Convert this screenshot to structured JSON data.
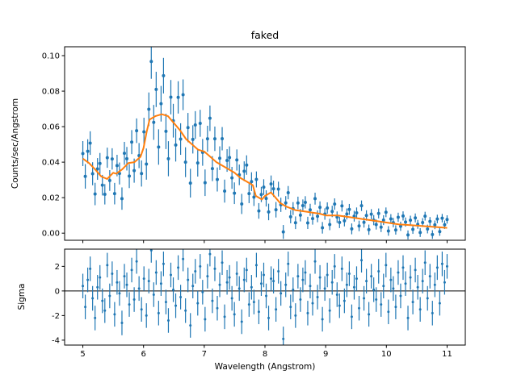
{
  "figure": {
    "background": "#ffffff",
    "data_color": "#1f77b4",
    "model_color": "#ff7f0e"
  },
  "chart_data": [
    {
      "type": "scatter",
      "name": "spectrum",
      "title": "faked",
      "ylabel": "Counts/sec/Angstrom",
      "xlim": [
        4.7,
        11.3
      ],
      "ylim": [
        -0.004,
        0.105
      ],
      "x_ticks": [
        5,
        6,
        7,
        8,
        9,
        10,
        11
      ],
      "x_tick_labels": [
        "5",
        "6",
        "7",
        "8",
        "9",
        "10",
        "11"
      ],
      "x_tick_labels_visible": false,
      "y_ticks": [
        0.0,
        0.02,
        0.04,
        0.06,
        0.08,
        0.1
      ],
      "y_tick_labels": [
        "0.00",
        "0.02",
        "0.04",
        "0.06",
        "0.08",
        "0.10"
      ],
      "grid": false,
      "legend": "none",
      "x": {
        "start": 5.0,
        "end": 11.0,
        "n": 150
      },
      "series": [
        {
          "name": "data",
          "type": "errorbar",
          "color": "#1f77b4",
          "marker": "point",
          "error_model": {
            "base": 0.002,
            "scale": 0.12
          },
          "note": "y = model(x) + sigma(x) * residual(x); residuals listed in residual panel values"
        },
        {
          "name": "model",
          "type": "line",
          "color": "#ff7f0e",
          "points": [
            [
              5.0,
              0.042
            ],
            [
              5.1,
              0.0395
            ],
            [
              5.2,
              0.036
            ],
            [
              5.3,
              0.032
            ],
            [
              5.4,
              0.0305
            ],
            [
              5.5,
              0.034
            ],
            [
              5.55,
              0.0335
            ],
            [
              5.65,
              0.036
            ],
            [
              5.75,
              0.0395
            ],
            [
              5.85,
              0.04
            ],
            [
              5.95,
              0.043
            ],
            [
              6.0,
              0.048
            ],
            [
              6.05,
              0.057
            ],
            [
              6.1,
              0.064
            ],
            [
              6.2,
              0.066
            ],
            [
              6.3,
              0.067
            ],
            [
              6.4,
              0.066
            ],
            [
              6.5,
              0.062
            ],
            [
              6.6,
              0.058
            ],
            [
              6.7,
              0.053
            ],
            [
              6.8,
              0.05
            ],
            [
              6.9,
              0.047
            ],
            [
              7.0,
              0.046
            ],
            [
              7.1,
              0.043
            ],
            [
              7.2,
              0.04
            ],
            [
              7.3,
              0.038
            ],
            [
              7.4,
              0.036
            ],
            [
              7.5,
              0.034
            ],
            [
              7.6,
              0.031
            ],
            [
              7.7,
              0.029
            ],
            [
              7.8,
              0.027
            ],
            [
              7.85,
              0.021
            ],
            [
              7.95,
              0.019
            ],
            [
              8.0,
              0.021
            ],
            [
              8.1,
              0.023
            ],
            [
              8.15,
              0.021
            ],
            [
              8.25,
              0.017
            ],
            [
              8.35,
              0.015
            ],
            [
              8.5,
              0.013
            ],
            [
              8.7,
              0.012
            ],
            [
              8.9,
              0.011
            ],
            [
              9.0,
              0.01
            ],
            [
              9.2,
              0.01
            ],
            [
              9.4,
              0.009
            ],
            [
              9.6,
              0.008
            ],
            [
              9.8,
              0.007
            ],
            [
              10.0,
              0.006
            ],
            [
              10.2,
              0.005
            ],
            [
              10.4,
              0.0045
            ],
            [
              10.6,
              0.004
            ],
            [
              10.8,
              0.0035
            ],
            [
              11.0,
              0.003
            ]
          ]
        }
      ]
    },
    {
      "type": "errorbar",
      "name": "residuals",
      "ylabel": "Sigma",
      "xlabel": "Wavelength (Angstrom)",
      "xlim": [
        4.7,
        11.3
      ],
      "ylim": [
        -4.4,
        3.4
      ],
      "x_ticks": [
        5,
        6,
        7,
        8,
        9,
        10,
        11
      ],
      "x_tick_labels": [
        "5",
        "6",
        "7",
        "8",
        "9",
        "10",
        "11"
      ],
      "x_tick_labels_visible": true,
      "y_ticks": [
        -4,
        -2,
        0,
        2
      ],
      "y_tick_labels": [
        "-4",
        "-2",
        "0",
        "2"
      ],
      "zero_line": true,
      "yerr": 1.0,
      "color": "#1f77b4",
      "x": {
        "start": 5.0,
        "end": 11.0,
        "n": 150
      },
      "values": [
        0.4,
        -1.3,
        0.9,
        1.8,
        -0.6,
        -2.2,
        0.3,
        1.1,
        -0.8,
        -1.6,
        2.1,
        -0.4,
        1.4,
        -1.9,
        0.7,
        -0.2,
        -2.6,
        1.2,
        0.5,
        -1.1,
        1.7,
        -0.7,
        2.4,
        0.2,
        -1.5,
        1.0,
        -2.0,
        0.8,
        3.3,
        -0.3,
        1.5,
        -1.8,
        0.6,
        2.2,
        -0.9,
        -2.4,
        1.3,
        0.1,
        -1.2,
        1.9,
        -0.5,
        2.6,
        -1.6,
        0.9,
        -2.8,
        0.4,
        1.6,
        -1.0,
        2.0,
        -0.1,
        -2.3,
        1.2,
        3.0,
        -0.8,
        1.8,
        -1.4,
        0.5,
        2.3,
        -2.1,
        0.7,
        1.1,
        -0.6,
        -1.9,
        1.4,
        0.2,
        -2.5,
        0.9,
        1.7,
        -1.1,
        0.3,
        -0.9,
        2.1,
        -1.7,
        0.6,
        1.3,
        -0.4,
        -2.2,
        1.0,
        0.8,
        -1.5,
        1.6,
        -0.2,
        -3.9,
        0.5,
        2.2,
        -1.3,
        0.1,
        -2.0,
        1.2,
        -0.7,
        0.9,
        1.5,
        -1.8,
        0.4,
        -1.0,
        2.4,
        -0.5,
        1.1,
        -2.3,
        0.2,
        1.3,
        -1.6,
        0.7,
        2.0,
        -0.3,
        -1.2,
        1.8,
        -0.8,
        0.5,
        1.4,
        -2.1,
        0.3,
        1.0,
        -1.4,
        2.5,
        -0.6,
        0.8,
        -1.9,
        1.2,
        0.1,
        -0.7,
        1.6,
        -1.1,
        0.4,
        2.1,
        -1.7,
        0.9,
        0.2,
        -1.3,
        1.5,
        -0.4,
        1.9,
        0.6,
        -2.2,
        1.1,
        -0.9,
        1.7,
        0.3,
        -1.5,
        0.8,
        2.3,
        -0.6,
        1.2,
        -1.8,
        0.5,
        1.9,
        -1.0,
        2.2,
        0.7,
        2.0
      ]
    }
  ]
}
